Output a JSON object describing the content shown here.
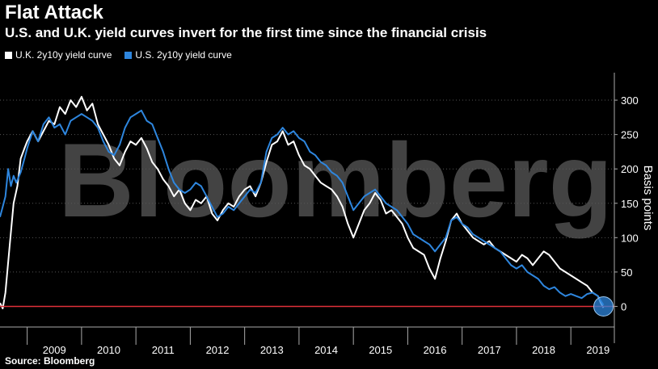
{
  "title": "Flat Attack",
  "subtitle": "U.S. and U.K. yield curves invert for the first time since the financial crisis",
  "source": "Source: Bloomberg",
  "watermark": "Bloomberg",
  "colors": {
    "uk": "#ffffff",
    "us": "#2e86de",
    "zero_line": "#e0303a",
    "marker": "#2e86de"
  },
  "chart_data": {
    "type": "line",
    "ylabel": "Basis points",
    "ylim": [
      -30,
      340
    ],
    "yticks": [
      0,
      50,
      100,
      150,
      200,
      250,
      300
    ],
    "xlim": [
      2008.5,
      2019.8
    ],
    "xticks": [
      "2009",
      "2010",
      "2011",
      "2012",
      "2013",
      "2014",
      "2015",
      "2016",
      "2017",
      "2018",
      "2019"
    ],
    "legend": "top-left",
    "series": [
      {
        "name": "U.K. 2y10y yield curve",
        "color": "#ffffff",
        "points": [
          [
            2008.5,
            5
          ],
          [
            2008.55,
            -3
          ],
          [
            2008.6,
            20
          ],
          [
            2008.68,
            90
          ],
          [
            2008.75,
            150
          ],
          [
            2008.82,
            175
          ],
          [
            2008.88,
            215
          ],
          [
            2008.95,
            230
          ],
          [
            2009.0,
            240
          ],
          [
            2009.1,
            255
          ],
          [
            2009.2,
            240
          ],
          [
            2009.3,
            255
          ],
          [
            2009.4,
            270
          ],
          [
            2009.5,
            265
          ],
          [
            2009.6,
            290
          ],
          [
            2009.7,
            280
          ],
          [
            2009.8,
            300
          ],
          [
            2009.9,
            290
          ],
          [
            2010.0,
            305
          ],
          [
            2010.1,
            285
          ],
          [
            2010.2,
            295
          ],
          [
            2010.3,
            265
          ],
          [
            2010.4,
            250
          ],
          [
            2010.5,
            235
          ],
          [
            2010.6,
            215
          ],
          [
            2010.7,
            205
          ],
          [
            2010.8,
            225
          ],
          [
            2010.9,
            240
          ],
          [
            2011.0,
            235
          ],
          [
            2011.1,
            245
          ],
          [
            2011.2,
            230
          ],
          [
            2011.3,
            210
          ],
          [
            2011.4,
            200
          ],
          [
            2011.5,
            185
          ],
          [
            2011.6,
            175
          ],
          [
            2011.7,
            160
          ],
          [
            2011.8,
            170
          ],
          [
            2011.9,
            150
          ],
          [
            2012.0,
            140
          ],
          [
            2012.1,
            155
          ],
          [
            2012.2,
            150
          ],
          [
            2012.3,
            160
          ],
          [
            2012.4,
            135
          ],
          [
            2012.5,
            125
          ],
          [
            2012.6,
            140
          ],
          [
            2012.7,
            150
          ],
          [
            2012.8,
            145
          ],
          [
            2012.9,
            160
          ],
          [
            2013.0,
            170
          ],
          [
            2013.1,
            175
          ],
          [
            2013.2,
            160
          ],
          [
            2013.3,
            180
          ],
          [
            2013.4,
            210
          ],
          [
            2013.5,
            235
          ],
          [
            2013.6,
            240
          ],
          [
            2013.7,
            255
          ],
          [
            2013.8,
            235
          ],
          [
            2013.9,
            240
          ],
          [
            2014.0,
            220
          ],
          [
            2014.1,
            205
          ],
          [
            2014.2,
            200
          ],
          [
            2014.3,
            190
          ],
          [
            2014.4,
            180
          ],
          [
            2014.5,
            175
          ],
          [
            2014.6,
            170
          ],
          [
            2014.7,
            160
          ],
          [
            2014.8,
            145
          ],
          [
            2014.9,
            120
          ],
          [
            2015.0,
            100
          ],
          [
            2015.1,
            120
          ],
          [
            2015.2,
            140
          ],
          [
            2015.3,
            150
          ],
          [
            2015.4,
            165
          ],
          [
            2015.5,
            155
          ],
          [
            2015.6,
            135
          ],
          [
            2015.7,
            140
          ],
          [
            2015.8,
            130
          ],
          [
            2015.9,
            120
          ],
          [
            2016.0,
            100
          ],
          [
            2016.1,
            85
          ],
          [
            2016.2,
            80
          ],
          [
            2016.3,
            75
          ],
          [
            2016.4,
            55
          ],
          [
            2016.5,
            40
          ],
          [
            2016.6,
            70
          ],
          [
            2016.7,
            95
          ],
          [
            2016.8,
            125
          ],
          [
            2016.9,
            135
          ],
          [
            2017.0,
            120
          ],
          [
            2017.1,
            110
          ],
          [
            2017.2,
            100
          ],
          [
            2017.3,
            95
          ],
          [
            2017.4,
            90
          ],
          [
            2017.5,
            95
          ],
          [
            2017.6,
            85
          ],
          [
            2017.7,
            80
          ],
          [
            2017.8,
            75
          ],
          [
            2017.9,
            70
          ],
          [
            2018.0,
            65
          ],
          [
            2018.1,
            75
          ],
          [
            2018.2,
            70
          ],
          [
            2018.3,
            60
          ],
          [
            2018.4,
            70
          ],
          [
            2018.5,
            80
          ],
          [
            2018.6,
            75
          ],
          [
            2018.7,
            65
          ],
          [
            2018.8,
            55
          ],
          [
            2018.9,
            50
          ],
          [
            2019.0,
            45
          ],
          [
            2019.1,
            40
          ],
          [
            2019.2,
            35
          ],
          [
            2019.3,
            30
          ],
          [
            2019.4,
            20
          ],
          [
            2019.5,
            15
          ],
          [
            2019.55,
            5
          ],
          [
            2019.6,
            -2
          ]
        ]
      },
      {
        "name": "U.S. 2y10y yield curve",
        "color": "#2e86de",
        "points": [
          [
            2008.5,
            130
          ],
          [
            2008.55,
            145
          ],
          [
            2008.6,
            160
          ],
          [
            2008.65,
            200
          ],
          [
            2008.7,
            175
          ],
          [
            2008.75,
            190
          ],
          [
            2008.8,
            180
          ],
          [
            2008.88,
            195
          ],
          [
            2008.95,
            215
          ],
          [
            2009.0,
            230
          ],
          [
            2009.1,
            255
          ],
          [
            2009.2,
            240
          ],
          [
            2009.3,
            265
          ],
          [
            2009.4,
            275
          ],
          [
            2009.5,
            260
          ],
          [
            2009.6,
            265
          ],
          [
            2009.7,
            250
          ],
          [
            2009.8,
            270
          ],
          [
            2009.9,
            275
          ],
          [
            2010.0,
            280
          ],
          [
            2010.1,
            275
          ],
          [
            2010.2,
            270
          ],
          [
            2010.3,
            260
          ],
          [
            2010.4,
            240
          ],
          [
            2010.5,
            225
          ],
          [
            2010.6,
            220
          ],
          [
            2010.7,
            235
          ],
          [
            2010.8,
            260
          ],
          [
            2010.9,
            275
          ],
          [
            2011.0,
            280
          ],
          [
            2011.1,
            285
          ],
          [
            2011.2,
            270
          ],
          [
            2011.3,
            265
          ],
          [
            2011.4,
            245
          ],
          [
            2011.5,
            225
          ],
          [
            2011.6,
            200
          ],
          [
            2011.7,
            180
          ],
          [
            2011.8,
            170
          ],
          [
            2011.9,
            165
          ],
          [
            2012.0,
            170
          ],
          [
            2012.1,
            180
          ],
          [
            2012.2,
            175
          ],
          [
            2012.3,
            160
          ],
          [
            2012.4,
            145
          ],
          [
            2012.5,
            130
          ],
          [
            2012.6,
            135
          ],
          [
            2012.7,
            145
          ],
          [
            2012.8,
            140
          ],
          [
            2012.9,
            150
          ],
          [
            2013.0,
            160
          ],
          [
            2013.1,
            170
          ],
          [
            2013.2,
            165
          ],
          [
            2013.3,
            180
          ],
          [
            2013.4,
            225
          ],
          [
            2013.5,
            245
          ],
          [
            2013.6,
            250
          ],
          [
            2013.7,
            260
          ],
          [
            2013.8,
            250
          ],
          [
            2013.9,
            255
          ],
          [
            2014.0,
            245
          ],
          [
            2014.1,
            240
          ],
          [
            2014.2,
            225
          ],
          [
            2014.3,
            220
          ],
          [
            2014.4,
            210
          ],
          [
            2014.5,
            205
          ],
          [
            2014.6,
            195
          ],
          [
            2014.7,
            190
          ],
          [
            2014.8,
            180
          ],
          [
            2014.9,
            160
          ],
          [
            2015.0,
            140
          ],
          [
            2015.1,
            150
          ],
          [
            2015.2,
            160
          ],
          [
            2015.3,
            165
          ],
          [
            2015.4,
            170
          ],
          [
            2015.5,
            160
          ],
          [
            2015.6,
            150
          ],
          [
            2015.7,
            145
          ],
          [
            2015.8,
            140
          ],
          [
            2015.9,
            130
          ],
          [
            2016.0,
            120
          ],
          [
            2016.1,
            105
          ],
          [
            2016.2,
            100
          ],
          [
            2016.3,
            95
          ],
          [
            2016.4,
            90
          ],
          [
            2016.5,
            80
          ],
          [
            2016.6,
            90
          ],
          [
            2016.7,
            100
          ],
          [
            2016.8,
            125
          ],
          [
            2016.9,
            130
          ],
          [
            2017.0,
            120
          ],
          [
            2017.1,
            115
          ],
          [
            2017.2,
            105
          ],
          [
            2017.3,
            100
          ],
          [
            2017.4,
            95
          ],
          [
            2017.5,
            90
          ],
          [
            2017.6,
            85
          ],
          [
            2017.7,
            80
          ],
          [
            2017.8,
            70
          ],
          [
            2017.9,
            60
          ],
          [
            2018.0,
            55
          ],
          [
            2018.1,
            60
          ],
          [
            2018.2,
            50
          ],
          [
            2018.3,
            45
          ],
          [
            2018.4,
            40
          ],
          [
            2018.5,
            30
          ],
          [
            2018.6,
            25
          ],
          [
            2018.7,
            28
          ],
          [
            2018.8,
            20
          ],
          [
            2018.9,
            15
          ],
          [
            2019.0,
            18
          ],
          [
            2019.1,
            15
          ],
          [
            2019.2,
            12
          ],
          [
            2019.3,
            18
          ],
          [
            2019.4,
            20
          ],
          [
            2019.5,
            15
          ],
          [
            2019.55,
            8
          ],
          [
            2019.6,
            2
          ]
        ]
      }
    ]
  }
}
